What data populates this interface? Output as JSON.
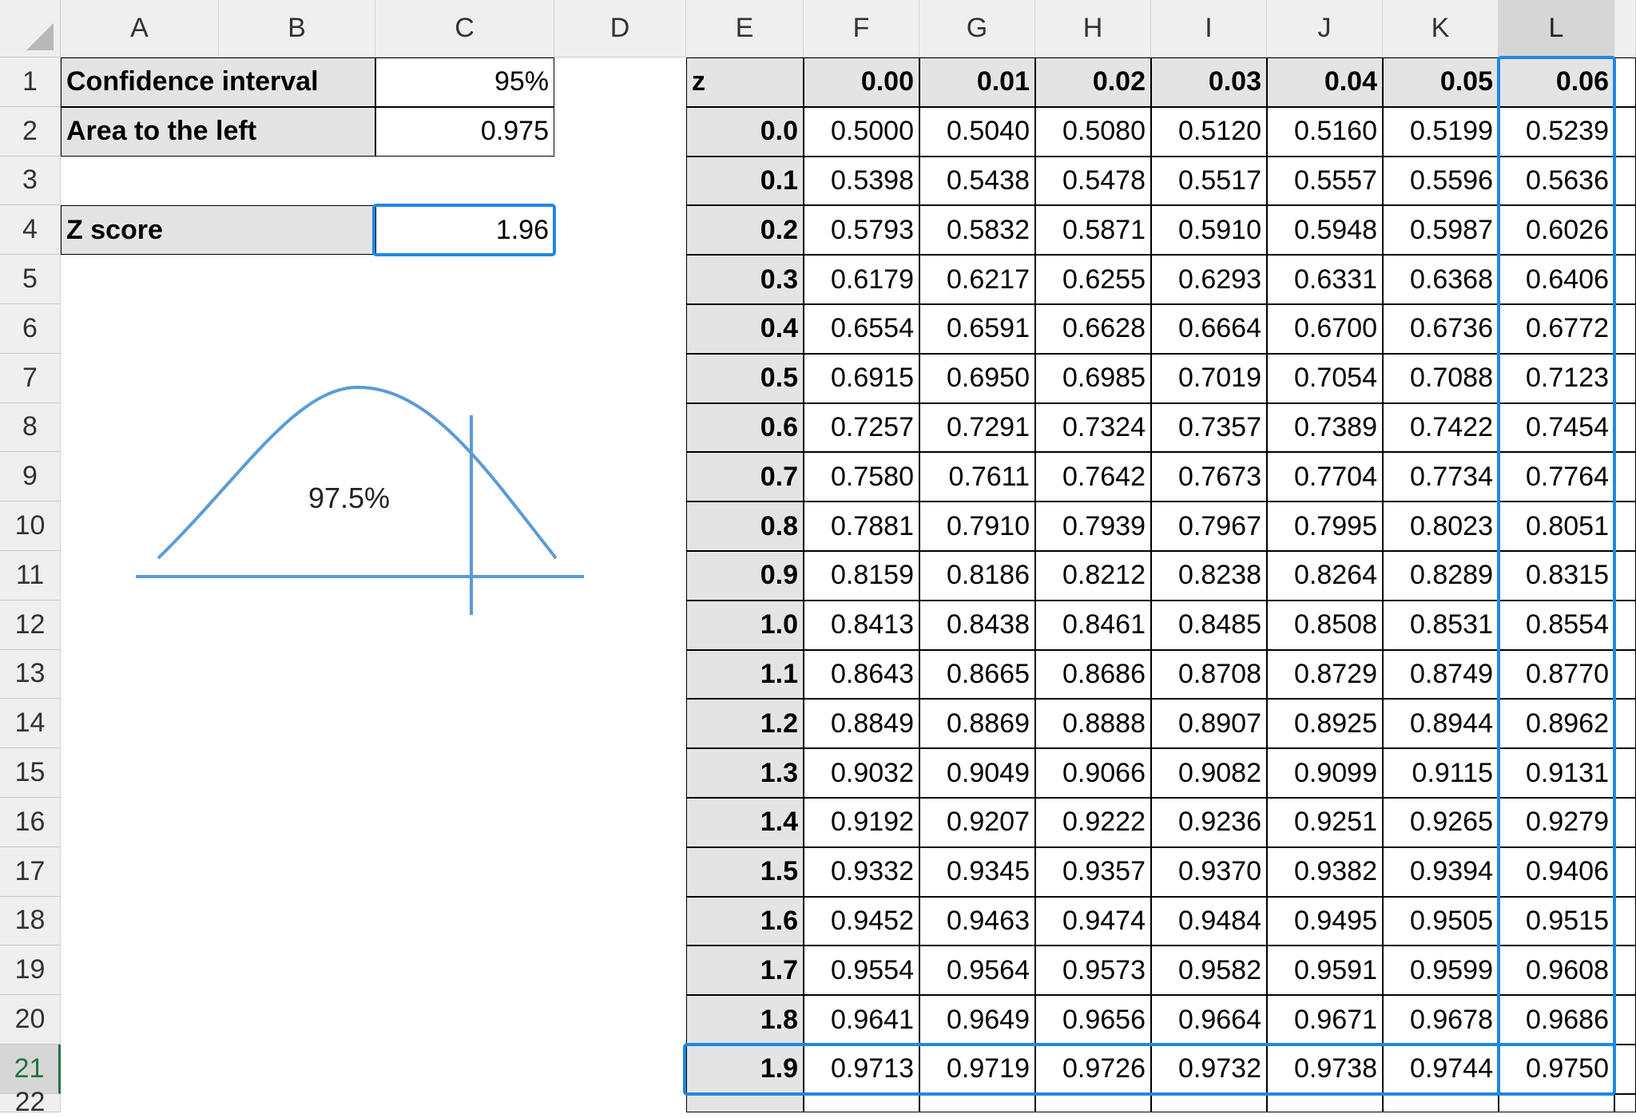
{
  "columns": [
    "A",
    "B",
    "C",
    "D",
    "E",
    "F",
    "G",
    "H",
    "I",
    "J",
    "K",
    "L"
  ],
  "rows": [
    "1",
    "2",
    "3",
    "4",
    "5",
    "6",
    "7",
    "8",
    "9",
    "10",
    "11",
    "12",
    "13",
    "14",
    "15",
    "16",
    "17",
    "18",
    "19",
    "20",
    "21",
    "22"
  ],
  "inputs": {
    "confidence_label": "Confidence interval",
    "confidence_value": "95%",
    "area_label": "Area to the left",
    "area_value": "0.975",
    "z_label": "Z score",
    "z_value": "1.96"
  },
  "diagram": {
    "label": "97.5%",
    "color": "#5b9bd5"
  },
  "z_table": {
    "corner": "z",
    "headers": [
      "0.00",
      "0.01",
      "0.02",
      "0.03",
      "0.04",
      "0.05",
      "0.06"
    ],
    "rows": [
      {
        "z": "0.0",
        "v": [
          "0.5000",
          "0.5040",
          "0.5080",
          "0.5120",
          "0.5160",
          "0.5199",
          "0.5239"
        ]
      },
      {
        "z": "0.1",
        "v": [
          "0.5398",
          "0.5438",
          "0.5478",
          "0.5517",
          "0.5557",
          "0.5596",
          "0.5636"
        ]
      },
      {
        "z": "0.2",
        "v": [
          "0.5793",
          "0.5832",
          "0.5871",
          "0.5910",
          "0.5948",
          "0.5987",
          "0.6026"
        ]
      },
      {
        "z": "0.3",
        "v": [
          "0.6179",
          "0.6217",
          "0.6255",
          "0.6293",
          "0.6331",
          "0.6368",
          "0.6406"
        ]
      },
      {
        "z": "0.4",
        "v": [
          "0.6554",
          "0.6591",
          "0.6628",
          "0.6664",
          "0.6700",
          "0.6736",
          "0.6772"
        ]
      },
      {
        "z": "0.5",
        "v": [
          "0.6915",
          "0.6950",
          "0.6985",
          "0.7019",
          "0.7054",
          "0.7088",
          "0.7123"
        ]
      },
      {
        "z": "0.6",
        "v": [
          "0.7257",
          "0.7291",
          "0.7324",
          "0.7357",
          "0.7389",
          "0.7422",
          "0.7454"
        ]
      },
      {
        "z": "0.7",
        "v": [
          "0.7580",
          "0.7611",
          "0.7642",
          "0.7673",
          "0.7704",
          "0.7734",
          "0.7764"
        ]
      },
      {
        "z": "0.8",
        "v": [
          "0.7881",
          "0.7910",
          "0.7939",
          "0.7967",
          "0.7995",
          "0.8023",
          "0.8051"
        ]
      },
      {
        "z": "0.9",
        "v": [
          "0.8159",
          "0.8186",
          "0.8212",
          "0.8238",
          "0.8264",
          "0.8289",
          "0.8315"
        ]
      },
      {
        "z": "1.0",
        "v": [
          "0.8413",
          "0.8438",
          "0.8461",
          "0.8485",
          "0.8508",
          "0.8531",
          "0.8554"
        ]
      },
      {
        "z": "1.1",
        "v": [
          "0.8643",
          "0.8665",
          "0.8686",
          "0.8708",
          "0.8729",
          "0.8749",
          "0.8770"
        ]
      },
      {
        "z": "1.2",
        "v": [
          "0.8849",
          "0.8869",
          "0.8888",
          "0.8907",
          "0.8925",
          "0.8944",
          "0.8962"
        ]
      },
      {
        "z": "1.3",
        "v": [
          "0.9032",
          "0.9049",
          "0.9066",
          "0.9082",
          "0.9099",
          "0.9115",
          "0.9131"
        ]
      },
      {
        "z": "1.4",
        "v": [
          "0.9192",
          "0.9207",
          "0.9222",
          "0.9236",
          "0.9251",
          "0.9265",
          "0.9279"
        ]
      },
      {
        "z": "1.5",
        "v": [
          "0.9332",
          "0.9345",
          "0.9357",
          "0.9370",
          "0.9382",
          "0.9394",
          "0.9406"
        ]
      },
      {
        "z": "1.6",
        "v": [
          "0.9452",
          "0.9463",
          "0.9474",
          "0.9484",
          "0.9495",
          "0.9505",
          "0.9515"
        ]
      },
      {
        "z": "1.7",
        "v": [
          "0.9554",
          "0.9564",
          "0.9573",
          "0.9582",
          "0.9591",
          "0.9599",
          "0.9608"
        ]
      },
      {
        "z": "1.8",
        "v": [
          "0.9641",
          "0.9649",
          "0.9656",
          "0.9664",
          "0.9671",
          "0.9678",
          "0.9686"
        ]
      },
      {
        "z": "1.9",
        "v": [
          "0.9713",
          "0.9719",
          "0.9726",
          "0.9732",
          "0.9738",
          "0.9744",
          "0.9750"
        ]
      }
    ]
  },
  "selection": {
    "color": "#1e88e5",
    "active_cell": "L21",
    "highlight_row": "21",
    "highlight_col": "L"
  }
}
